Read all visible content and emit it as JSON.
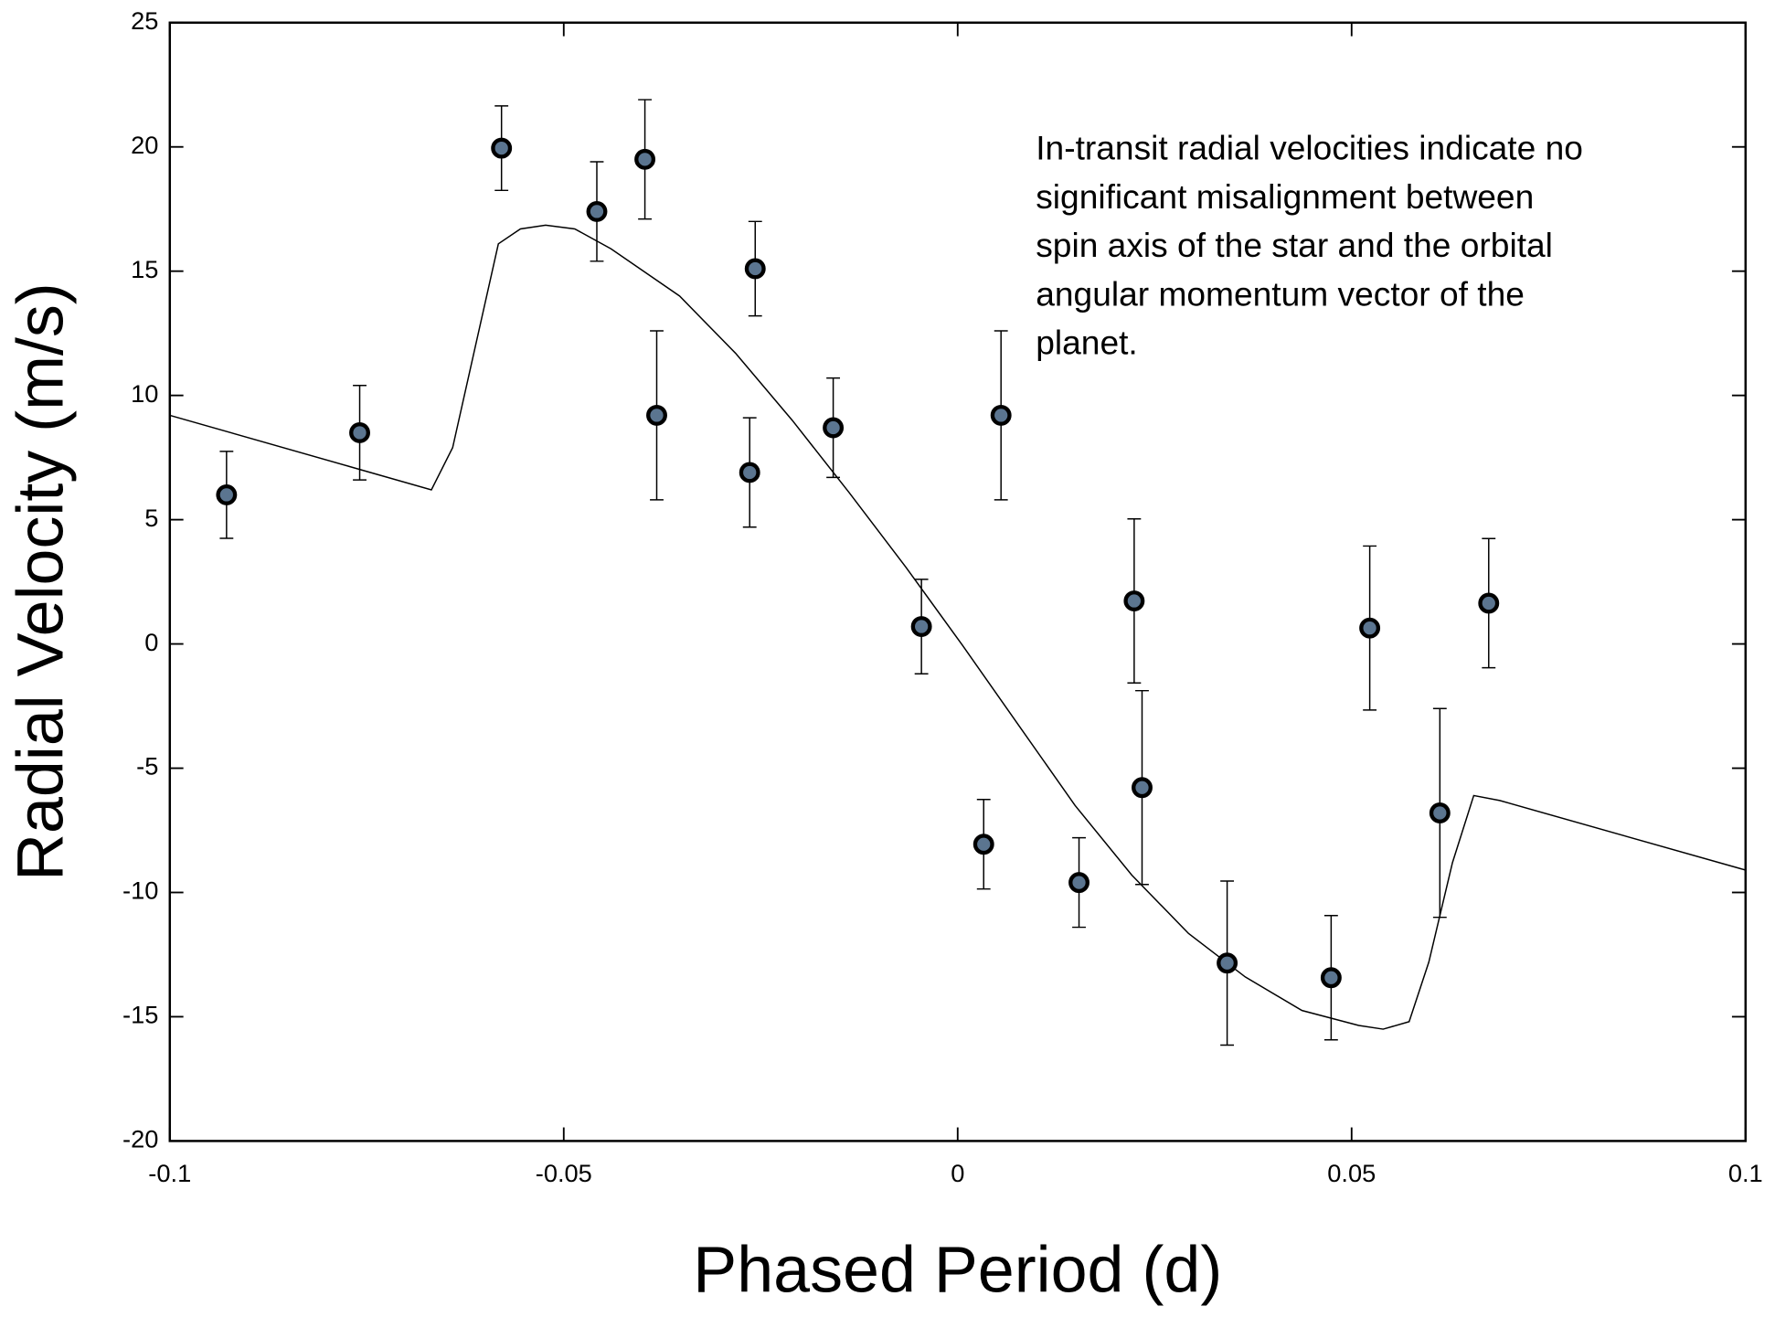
{
  "chart_data": {
    "type": "scatter",
    "x_label": "Phased Period (d)",
    "y_label": "Radial Velocity  (m/s)",
    "annotation": [
      "In-transit radial velocities indicate no",
      "significant misalignment between",
      "spin axis of the star and the orbital",
      "angular momentum vector of the",
      "planet."
    ],
    "xlim": [
      -0.1,
      0.1
    ],
    "ylim": [
      -20,
      25
    ],
    "xticks": [
      -0.1,
      -0.05,
      0,
      0.05,
      0.1
    ],
    "yticks": [
      -20,
      -15,
      -10,
      -5,
      0,
      5,
      10,
      15,
      20,
      25
    ],
    "points": {
      "color": "#5b7590",
      "x": [
        -0.0928,
        -0.0759,
        -0.0579,
        -0.0458,
        -0.0397,
        -0.0382,
        -0.0264,
        -0.0257,
        -0.0158,
        -0.0046,
        0.0033,
        0.0055,
        0.0154,
        0.0224,
        0.0234,
        0.0342,
        0.0474,
        0.0523,
        0.0612,
        0.0674
      ],
      "y": [
        6.0,
        8.5,
        19.95,
        17.4,
        19.5,
        9.2,
        6.9,
        15.1,
        8.7,
        0.7,
        -8.06,
        9.2,
        -9.6,
        1.73,
        -5.78,
        -12.84,
        -13.43,
        0.64,
        -6.8,
        1.64
      ],
      "yerr": [
        1.75,
        1.9,
        1.7,
        2.0,
        2.4,
        3.4,
        2.2,
        1.9,
        2.0,
        1.9,
        1.8,
        3.4,
        1.8,
        3.3,
        3.9,
        3.3,
        2.5,
        3.3,
        4.2,
        2.6
      ]
    },
    "model": {
      "color": "#000000",
      "x": [
        -0.1,
        -0.0668,
        -0.0641,
        -0.0583,
        -0.0555,
        -0.0523,
        -0.0486,
        -0.044,
        -0.0353,
        -0.0282,
        -0.021,
        -0.0138,
        -0.0066,
        0.0006,
        0.0078,
        0.0149,
        0.0221,
        0.0293,
        0.0365,
        0.0437,
        0.0509,
        0.054,
        0.0573,
        0.0598,
        0.0628,
        0.0655,
        0.0688,
        0.1
      ],
      "y": [
        9.2,
        6.2,
        7.9,
        16.1,
        16.7,
        16.85,
        16.7,
        15.9,
        14.0,
        11.7,
        9.0,
        6.1,
        3.1,
        -0.05,
        -3.3,
        -6.5,
        -9.3,
        -11.65,
        -13.4,
        -14.75,
        -15.35,
        -15.5,
        -15.2,
        -12.8,
        -8.8,
        -6.1,
        -6.3,
        -9.1
      ]
    }
  }
}
